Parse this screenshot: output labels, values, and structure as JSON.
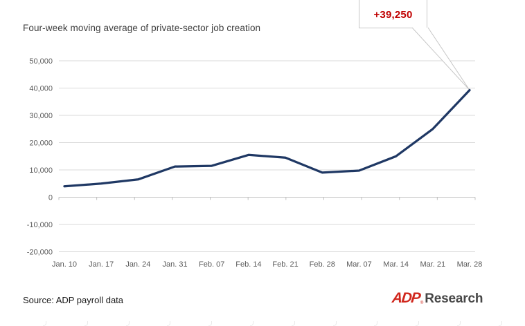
{
  "title": "Four-week moving average of private-sector job creation",
  "callout": {
    "label": "+39,250",
    "color": "#c00000"
  },
  "source": "Source: ADP payroll data",
  "logo": {
    "brand": "ADP",
    "registered": "®",
    "suffix": "Research",
    "brand_color": "#d0271d",
    "suffix_color": "#474747"
  },
  "chart_data": {
    "type": "line",
    "title": "Four-week moving average of private-sector job creation",
    "categories": [
      "Jan. 10",
      "Jan. 17",
      "Jan. 24",
      "Jan. 31",
      "Feb. 07",
      "Feb. 14",
      "Feb. 21",
      "Feb. 28",
      "Mar. 07",
      "Mar. 14",
      "Mar. 21",
      "Mar. 28"
    ],
    "series": [
      {
        "name": "Four-week moving average of private-sector job creation",
        "values": [
          4000,
          5000,
          6500,
          11250,
          11500,
          15500,
          14500,
          9000,
          9750,
          15000,
          25000,
          39250
        ],
        "color": "#1f3864"
      }
    ],
    "ylim": [
      -20000,
      50000
    ],
    "ytick_step": 10000,
    "ytick_labels": [
      "-20,000",
      "-10,000",
      "0",
      "10,000",
      "20,000",
      "30,000",
      "40,000",
      "50,000"
    ],
    "grid": true,
    "grid_color": "#d9d9d9",
    "axis_color": "#bfbfbf",
    "legend": "none",
    "annotation": {
      "category": "Mar. 28",
      "value": 39250,
      "label": "+39,250",
      "color": "#c00000"
    }
  }
}
